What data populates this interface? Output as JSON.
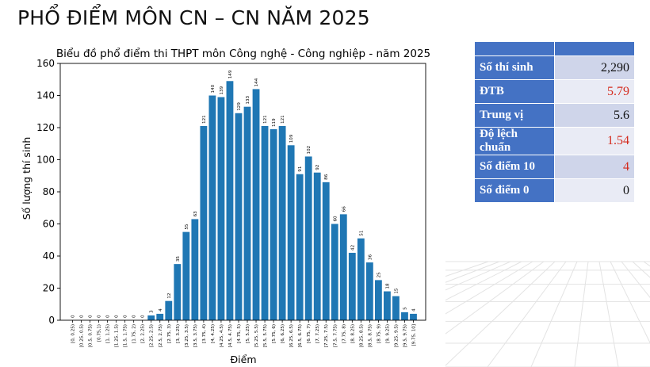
{
  "slide": {
    "title": "PHỔ ĐIỂM MÔN CN – CN NĂM 2025"
  },
  "stats": {
    "rows": [
      {
        "label": "Số thí sinh",
        "value": "2,290",
        "highlight": false
      },
      {
        "label": "ĐTB",
        "value": "5.79",
        "highlight": true
      },
      {
        "label": "Trung vị",
        "value": "5.6",
        "highlight": false
      },
      {
        "label": "Độ lệch chuẩn",
        "value": "1.54",
        "highlight": true
      },
      {
        "label": "Số điểm 10",
        "value": "4",
        "highlight": true
      },
      {
        "label": "Số điểm 0",
        "value": "0",
        "highlight": false
      }
    ]
  },
  "colors": {
    "bar": "#1f77b4",
    "table_header": "#4472c4",
    "row_odd": "#cfd5ea",
    "row_even": "#e9ebf5",
    "highlight_text": "#d42b1e"
  },
  "chart_data": {
    "type": "bar",
    "title": "Biểu đồ phổ điểm thi THPT môn Công nghệ - Công nghiệp - năm 2025",
    "xlabel": "Điểm",
    "ylabel": "Số lượng thí sinh",
    "ylim": [
      0,
      160
    ],
    "yticks": [
      0,
      20,
      40,
      60,
      80,
      100,
      120,
      140,
      160
    ],
    "grid": false,
    "legend": "none",
    "categories": [
      "[0, 0.25)",
      "[0.25, 0.5)",
      "[0.5, 0.75)",
      "[0.75,1)",
      "[1, 1.25)",
      "[1.25, 1.5)",
      "[1.5, 1.75)",
      "[1.75, 2)",
      "[2, 2.25)",
      "[2.25, 2.5)",
      "[2.5, 2.75)",
      "[2.75, 3)",
      "[3, 3.25)",
      "[3.25, 3.5)",
      "[3.5, 3.75)",
      "[3.75, 4)",
      "[4, 4.25)",
      "[4.25, 4.5)",
      "[4.5, 4.75)",
      "[4.75, 5)",
      "[5, 5.25)",
      "[5.25, 5.5)",
      "[5.5, 5.75)",
      "[5.75, 6)",
      "[6, 6.25)",
      "[6.25, 6.5)",
      "[6.5, 6.75)",
      "[6.75, 7)",
      "[7, 7.25)",
      "[7.25, 7.5)",
      "[7.5, 7.75)",
      "[7.75, 8)",
      "[8, 8.25)",
      "[8.25, 8.5)",
      "[8.5, 8.75)",
      "[8.75, 9)",
      "[9, 9.25)",
      "[9.25, 9.5)",
      "[9.5, 9.75)",
      "[9.75, 10]"
    ],
    "values": [
      0,
      0,
      0,
      0,
      0,
      0,
      0,
      0,
      0,
      3,
      4,
      12,
      35,
      55,
      63,
      121,
      140,
      139,
      149,
      129,
      133,
      144,
      121,
      119,
      121,
      109,
      91,
      102,
      92,
      86,
      60,
      66,
      42,
      51,
      36,
      25,
      18,
      15,
      5,
      4
    ]
  }
}
